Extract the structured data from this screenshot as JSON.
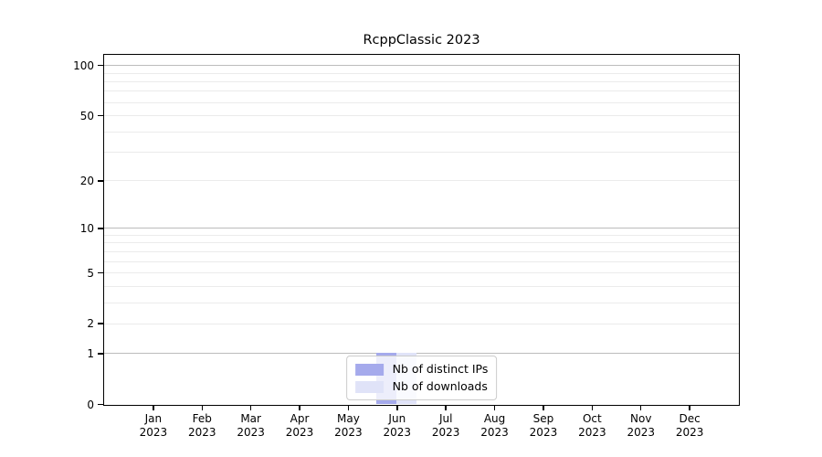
{
  "title": "RcppClassic 2023",
  "colors": {
    "distinct_ips_bar": "#a5aaec",
    "downloads_bar": "#e0e3f8",
    "major_gridline": "#bcbcbc",
    "minor_gridline": "#ebebeb",
    "spine": "#000000",
    "legend_border": "#cccccc",
    "legend_background": "rgba(255,255,255,0.8)",
    "text": "#000000"
  },
  "legend": {
    "items": [
      {
        "label": "Nb of distinct IPs",
        "color": "#a5aaec"
      },
      {
        "label": "Nb of downloads",
        "color": "#e0e3f8"
      }
    ]
  },
  "chart_data": {
    "type": "bar",
    "title": "RcppClassic 2023",
    "xlabel": "",
    "ylabel": "",
    "categories": [
      "Jan 2023",
      "Feb 2023",
      "Mar 2023",
      "Apr 2023",
      "May 2023",
      "Jun 2023",
      "Jul 2023",
      "Aug 2023",
      "Sep 2023",
      "Oct 2023",
      "Nov 2023",
      "Dec 2023"
    ],
    "series": [
      {
        "name": "Nb of distinct IPs",
        "color": "#a5aaec",
        "values": [
          0,
          0,
          0,
          0,
          0,
          1,
          0,
          0,
          0,
          0,
          0,
          0
        ]
      },
      {
        "name": "Nb of downloads",
        "color": "#e0e3f8",
        "values": [
          0,
          0,
          0,
          0,
          0,
          1,
          0,
          0,
          0,
          0,
          0,
          0
        ]
      }
    ],
    "bar_layout": "grouped",
    "y_axis": {
      "scale": "log1p",
      "ylim": [
        0,
        115
      ],
      "ticks": [
        0,
        1,
        2,
        5,
        10,
        20,
        50,
        100
      ],
      "major_gridlines": [
        1,
        10,
        100
      ],
      "minor_gridlines": [
        2,
        3,
        4,
        5,
        6,
        7,
        8,
        9,
        20,
        30,
        40,
        50,
        60,
        70,
        80,
        90
      ]
    },
    "grid": true,
    "legend_position": "lower center"
  }
}
